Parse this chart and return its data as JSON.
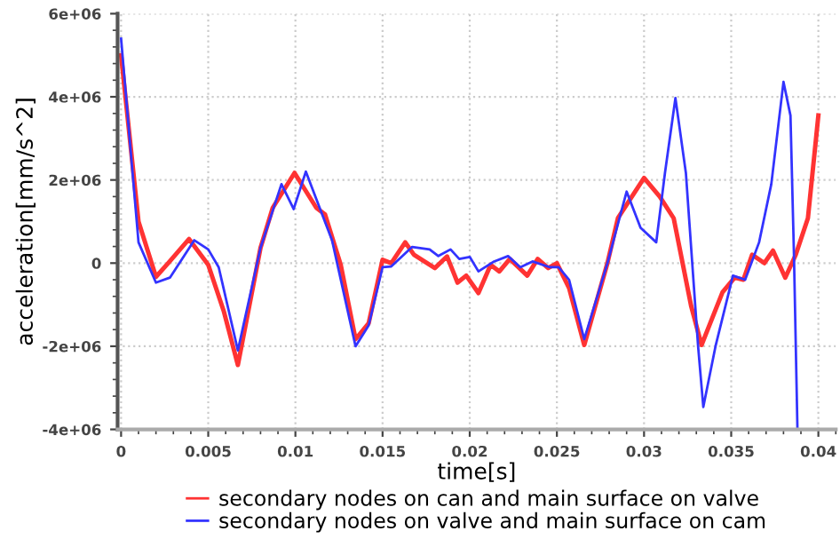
{
  "chart_data": {
    "type": "line",
    "xlabel": "time[s]",
    "ylabel": "acceleration[mm/s^2]",
    "xlim": [
      -0.0002,
      0.041
    ],
    "xticks": [
      0,
      0.005,
      0.01,
      0.015,
      0.02,
      0.025,
      0.03,
      0.035,
      0.04
    ],
    "ylim": [
      -4000000,
      6000000
    ],
    "yticks": [
      {
        "value": -4000000,
        "label": "-4e+06"
      },
      {
        "value": -2000000,
        "label": "-2e+06"
      },
      {
        "value": 0,
        "label": "0"
      },
      {
        "value": 2000000,
        "label": "2e+06"
      },
      {
        "value": 4000000,
        "label": "4e+06"
      },
      {
        "value": 6000000,
        "label": "6e+06"
      }
    ],
    "grid": true,
    "legend": "bottom",
    "line_style": "solid",
    "marker": "none",
    "series": [
      {
        "name": "secondary nodes on can and main surface on valve",
        "color": "#ff3333",
        "x": [
          0,
          0.001,
          0.002,
          0.0027,
          0.0039,
          0.005,
          0.0059,
          0.0067,
          0.008,
          0.0087,
          0.00995,
          0.0112,
          0.0117,
          0.0126,
          0.01345,
          0.0142,
          0.015,
          0.0155,
          0.0163,
          0.0168,
          0.018,
          0.0187,
          0.0193,
          0.0198,
          0.0205,
          0.0212,
          0.0217,
          0.0223,
          0.0233,
          0.0239,
          0.0245,
          0.025,
          0.0257,
          0.02657,
          0.0279,
          0.0285,
          0.03,
          0.0309,
          0.0317,
          0.0327,
          0.0333,
          0.0345,
          0.0352,
          0.0357,
          0.0362,
          0.0369,
          0.0374,
          0.0381,
          0.0387,
          0.0394,
          0.04
        ],
        "values": [
          5000000,
          1000000,
          -330000,
          0,
          580000,
          -40000,
          -1170000,
          -2450000,
          370000,
          1330000,
          2170000,
          1330000,
          1170000,
          -40000,
          -1830000,
          -1450000,
          80000,
          0,
          500000,
          200000,
          -120000,
          160000,
          -470000,
          -300000,
          -720000,
          -40000,
          -200000,
          100000,
          -300000,
          100000,
          -120000,
          0,
          -600000,
          -1970000,
          0,
          1080000,
          2050000,
          1600000,
          1080000,
          -1030000,
          -1970000,
          -700000,
          -350000,
          -400000,
          200000,
          0,
          300000,
          -350000,
          200000,
          1080000,
          3550000
        ]
      },
      {
        "name": "secondary nodes on valve and main surface on cam",
        "color": "#3333ff",
        "x": [
          0,
          0.001,
          0.002,
          0.0028,
          0.0042,
          0.005,
          0.0056,
          0.0067,
          0.008,
          0.0092,
          0.0099,
          0.0106,
          0.0121,
          0.01345,
          0.0142,
          0.015,
          0.0155,
          0.0167,
          0.0177,
          0.0182,
          0.0189,
          0.0194,
          0.02,
          0.0205,
          0.0214,
          0.0222,
          0.0229,
          0.0236,
          0.0246,
          0.0251,
          0.0257,
          0.02657,
          0.0279,
          0.029,
          0.0298,
          0.0307,
          0.0312,
          0.0318,
          0.0324,
          0.0331,
          0.0334,
          0.0341,
          0.0351,
          0.0358,
          0.0366,
          0.0373,
          0.038,
          0.0384,
          0.0386,
          0.0388
        ],
        "values": [
          5400000,
          500000,
          -470000,
          -350000,
          550000,
          330000,
          -100000,
          -2100000,
          370000,
          1900000,
          1300000,
          2200000,
          550000,
          -2000000,
          -1500000,
          -100000,
          -80000,
          390000,
          330000,
          170000,
          330000,
          100000,
          150000,
          -200000,
          40000,
          170000,
          -100000,
          40000,
          -100000,
          -100000,
          -400000,
          -1830000,
          0,
          1720000,
          850000,
          500000,
          2170000,
          3970000,
          2170000,
          -2000000,
          -3460000,
          -2000000,
          -300000,
          -400000,
          500000,
          1900000,
          4360000,
          3550000,
          200000,
          -4000000
        ]
      }
    ]
  }
}
